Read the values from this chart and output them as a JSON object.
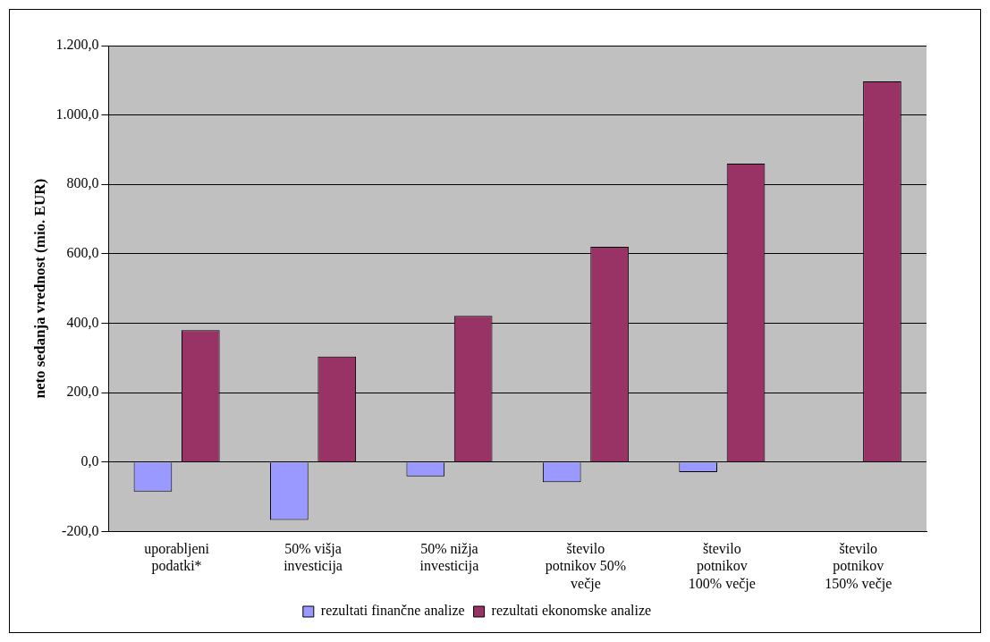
{
  "chart_data": {
    "type": "bar",
    "ylabel": "neto sedanja vrednost (mio. EUR)",
    "categories": [
      "uporabljeni podatki*",
      "50% višja investicija",
      "50% nižja investicija",
      "število potnikov 50% večje",
      "število potnikov 100% večje",
      "število potnikov 150% večje"
    ],
    "series": [
      {
        "name": "rezultati finančne analize",
        "color": "#9999ff",
        "values": [
          -85,
          -167,
          -41,
          -58,
          -29,
          null
        ]
      },
      {
        "name": "rezultati ekonomske analize",
        "color": "#993366",
        "values": [
          380,
          304,
          421,
          620,
          860,
          1097
        ]
      }
    ],
    "ylim": [
      -200,
      1200
    ],
    "yticks": [
      {
        "value": -200,
        "label": "-200,0"
      },
      {
        "value": 0,
        "label": "0,0"
      },
      {
        "value": 200,
        "label": "200,0"
      },
      {
        "value": 400,
        "label": "400,0"
      },
      {
        "value": 600,
        "label": "600,0"
      },
      {
        "value": 800,
        "label": "800,0"
      },
      {
        "value": 1000,
        "label": "1.000,0"
      },
      {
        "value": 1200,
        "label": "1.200,0"
      }
    ],
    "grid": "y",
    "legend": "bottom"
  }
}
